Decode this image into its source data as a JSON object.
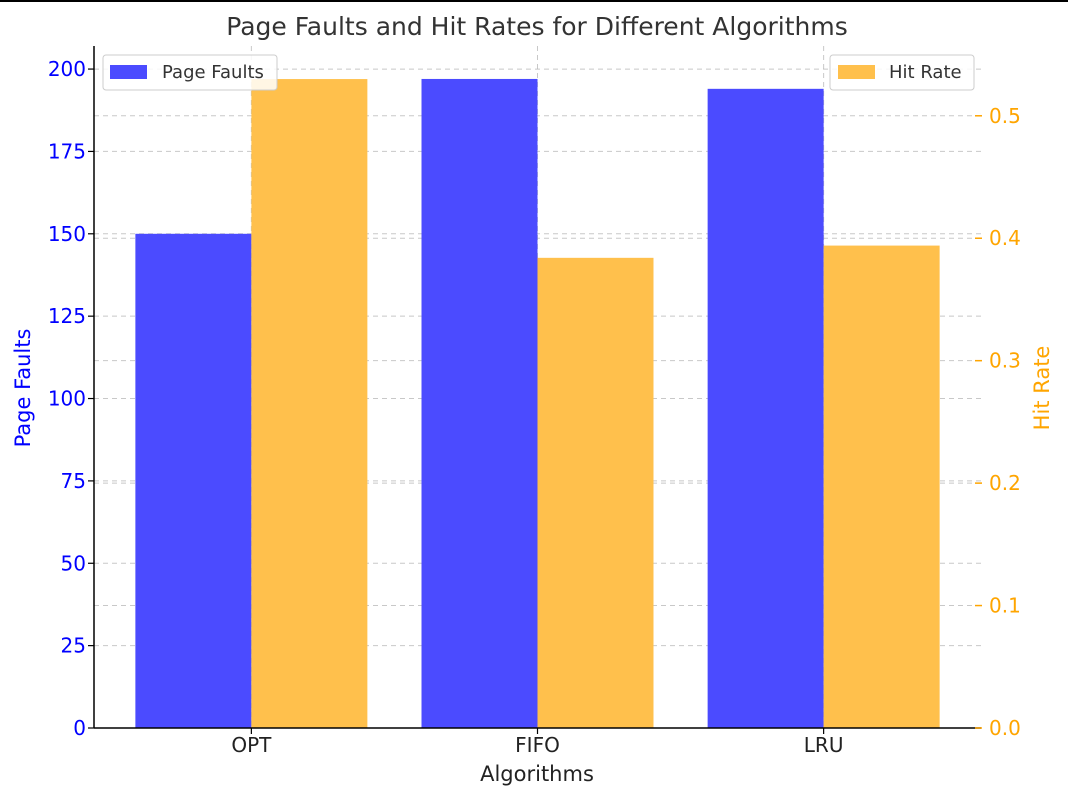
{
  "chart_data": {
    "type": "bar",
    "title": "Page Faults and Hit Rates for Different Algorithms",
    "xlabel": "Algorithms",
    "categories": [
      "OPT",
      "FIFO",
      "LRU"
    ],
    "left_axis": {
      "label": "Page Faults",
      "color": "#0000ff",
      "ylim": [
        0,
        207
      ],
      "ticks": [
        0,
        25,
        50,
        75,
        100,
        125,
        150,
        175,
        200
      ]
    },
    "right_axis": {
      "label": "Hit Rate",
      "color": "#ffa500",
      "ylim": [
        0,
        0.557
      ],
      "ticks": [
        "0.0",
        "0.1",
        "0.2",
        "0.3",
        "0.4",
        "0.5"
      ]
    },
    "series": [
      {
        "name": "Page Faults",
        "axis": "left",
        "color": "#4b4bff",
        "values": [
          150,
          197,
          194
        ]
      },
      {
        "name": "Hit Rate",
        "axis": "right",
        "color": "#ffc04c",
        "values": [
          0.53,
          0.384,
          0.394
        ]
      }
    ],
    "legend": {
      "left_series": "Page Faults",
      "left_position": "upper left",
      "right_series": "Hit Rate",
      "right_position": "upper right"
    },
    "grid": true
  }
}
